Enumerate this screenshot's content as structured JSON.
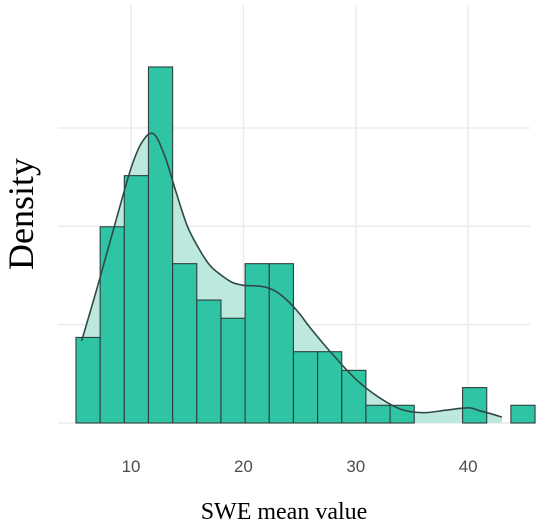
{
  "chart_data": {
    "type": "histogram",
    "xlabel": "SWE mean value",
    "ylabel": "Density",
    "xlim": [
      3.5,
      45.5
    ],
    "ylim": [
      0,
      0.085
    ],
    "grid": true,
    "x_ticks": [
      10,
      20,
      30,
      40
    ],
    "x_tick_labels": [
      "10",
      "20",
      "30",
      "40"
    ],
    "y_gridlines": [
      0,
      0.02,
      0.04,
      0.06
    ],
    "bin_width": 2.15,
    "bins": [
      {
        "start": 5.1,
        "end": 7.25,
        "density": 0.0174
      },
      {
        "start": 7.25,
        "end": 9.4,
        "density": 0.0399
      },
      {
        "start": 9.4,
        "end": 11.55,
        "density": 0.0503
      },
      {
        "start": 11.55,
        "end": 13.7,
        "density": 0.0724
      },
      {
        "start": 13.7,
        "end": 15.85,
        "density": 0.0324
      },
      {
        "start": 15.85,
        "end": 18.0,
        "density": 0.025
      },
      {
        "start": 18.0,
        "end": 20.15,
        "density": 0.0213
      },
      {
        "start": 20.15,
        "end": 22.3,
        "density": 0.0324
      },
      {
        "start": 22.3,
        "end": 24.45,
        "density": 0.0324
      },
      {
        "start": 24.45,
        "end": 26.6,
        "density": 0.0145
      },
      {
        "start": 26.6,
        "end": 28.75,
        "density": 0.0145
      },
      {
        "start": 28.75,
        "end": 30.9,
        "density": 0.0107
      },
      {
        "start": 30.9,
        "end": 33.05,
        "density": 0.0036
      },
      {
        "start": 33.05,
        "end": 35.2,
        "density": 0.0036
      },
      {
        "start": 35.2,
        "end": 37.35,
        "density": 0.0
      },
      {
        "start": 37.35,
        "end": 39.5,
        "density": 0.0
      },
      {
        "start": 39.5,
        "end": 41.65,
        "density": 0.0072
      },
      {
        "start": 41.65,
        "end": 43.8,
        "density": 0.0
      },
      {
        "start": 43.8,
        "end": 45.95,
        "density": 0.0036
      }
    ],
    "density_curve": {
      "x": [
        5.6,
        7,
        8.5,
        10,
        11,
        12,
        13,
        14,
        15,
        16,
        17,
        18,
        19,
        20,
        21,
        22,
        23,
        24,
        25,
        26,
        28,
        30,
        32,
        34,
        36,
        38,
        40,
        41,
        42,
        43
      ],
      "y": [
        0.0167,
        0.0276,
        0.0399,
        0.0518,
        0.0572,
        0.0588,
        0.0543,
        0.047,
        0.0401,
        0.0356,
        0.0321,
        0.0301,
        0.0286,
        0.028,
        0.0279,
        0.0276,
        0.0266,
        0.0247,
        0.0222,
        0.0192,
        0.0138,
        0.0089,
        0.0053,
        0.0028,
        0.0021,
        0.0026,
        0.0031,
        0.0025,
        0.0019,
        0.0012
      ]
    },
    "colors": {
      "bar_fill": "#2ec4a4",
      "bar_stroke": "#2f3f3d",
      "density_fill": "#bde8dd",
      "density_line": "#2f4a46",
      "grid": "#ebebeb"
    }
  }
}
